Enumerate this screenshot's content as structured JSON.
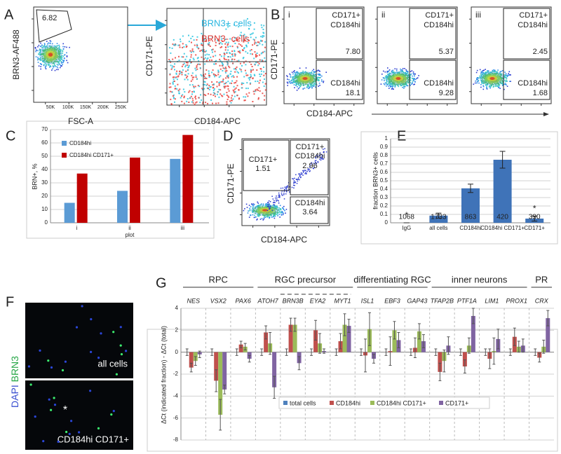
{
  "panel_labels": [
    "A",
    "B",
    "C",
    "D",
    "E",
    "F",
    "G"
  ],
  "panel_a": {
    "gate_value": "6.82",
    "left_y_label": "BRN3-AF488",
    "left_x_label": "FSC-A",
    "left_xticks": [
      "50K",
      "100K",
      "150K",
      "200K",
      "250K"
    ],
    "right_y_label": "CD171-PE",
    "right_x_label": "CD184-APC",
    "legend": [
      "BRN3+ cells",
      "BRN3- cells"
    ]
  },
  "panel_b": {
    "y_label": "CD171-PE",
    "x_label": "CD184-APC",
    "plots": [
      {
        "label": "i",
        "upper_gate": [
          "CD171+",
          "CD184hi"
        ],
        "upper_value": "7.80",
        "lower_gate": "CD184hi",
        "lower_value": "18.1"
      },
      {
        "label": "ii",
        "upper_gate": [
          "CD171+",
          "CD184hi"
        ],
        "upper_value": "5.37",
        "lower_gate": "CD184hi",
        "lower_value": "9.28"
      },
      {
        "label": "iii",
        "upper_gate": [
          "CD171+",
          "CD184hi"
        ],
        "upper_value": "2.45",
        "lower_gate": "CD184hi",
        "lower_value": "1.68"
      }
    ]
  },
  "panel_d": {
    "y_label": "CD171-PE",
    "x_label": "CD184-APC",
    "left_gate": "CD171+",
    "left_value": "1.51",
    "upper_gate": [
      "CD171+",
      "CD184hi"
    ],
    "upper_value": "2.96",
    "lower_gate": "CD184hi",
    "lower_value": "3.64"
  },
  "panel_f": {
    "stain_labels": [
      "DAPI",
      "BRN3"
    ],
    "top_label": "all cells",
    "bottom_label": "CD184hi CD171+",
    "marker": "*"
  },
  "chart_data": [
    {
      "type": "bar",
      "y_label": "BRN+, %",
      "x_label": "plot",
      "categories": [
        "i",
        "ii",
        "iii"
      ],
      "series": [
        {
          "name": "CD184hi",
          "color": "#5b9bd5",
          "values": [
            15,
            24,
            48
          ]
        },
        {
          "name": "CD184hi CD171+",
          "color": "#c00000",
          "values": [
            37,
            49,
            66
          ]
        }
      ],
      "ylim": [
        0,
        70
      ],
      "yticks": [
        0,
        10,
        20,
        30,
        40,
        50,
        60,
        70
      ],
      "grid": true,
      "legend": "upper left"
    },
    {
      "type": "bar",
      "y_label": "fraction BRN3+ cells",
      "categories": [
        "IgG",
        "all cells",
        "CD184hi",
        "CD184hi CD171+",
        "CD171+"
      ],
      "values": [
        0,
        0.085,
        0.41,
        0.75,
        0.05
      ],
      "errors": [
        0,
        0.03,
        0.05,
        0.1,
        0.03
      ],
      "count_labels": [
        1068,
        1733,
        863,
        420,
        390
      ],
      "significance": [
        "*",
        null,
        null,
        null,
        "*"
      ],
      "color": "#3f73b8",
      "ylim": [
        0,
        1
      ],
      "yticks": [
        0,
        0.1,
        0.2,
        0.3,
        0.4,
        0.5,
        0.6,
        0.7,
        0.8,
        0.9,
        1
      ],
      "grid": true
    },
    {
      "type": "bar",
      "y_label": "ΔCt (indicated fraction) - ΔCt (total)",
      "group_labels": [
        "RPC",
        "RGC precursor",
        "differentiating RGC",
        "inner neurons",
        "PR"
      ],
      "categories": [
        "NES",
        "VSX2",
        "PAX6",
        "ATOH7",
        "BRN3B",
        "EYA2",
        "MYT1",
        "ISL1",
        "EBF3",
        "GAP43",
        "TFAP2B",
        "PTF1A",
        "LIM1",
        "PROX1",
        "CRX"
      ],
      "series": [
        {
          "name": "total cells",
          "color": "#4f81bd",
          "values": [
            0,
            0,
            0,
            0,
            0,
            0,
            0,
            0,
            0,
            0,
            0,
            0,
            0,
            0,
            0
          ],
          "errors": [
            0.3,
            0.3,
            0.3,
            0.3,
            0.3,
            0.3,
            0.3,
            0.3,
            0.3,
            0.3,
            0.3,
            0.3,
            0.3,
            0.3,
            0.3
          ]
        },
        {
          "name": "CD184hi",
          "color": "#c0504d",
          "values": [
            -1.4,
            -2.6,
            0.7,
            1.8,
            2.5,
            2.0,
            1.0,
            -0.3,
            0.1,
            0.4,
            -1.8,
            -1.3,
            -0.6,
            1.4,
            -0.5
          ],
          "errors": [
            0.4,
            1.0,
            0.3,
            0.6,
            0.6,
            0.9,
            0.7,
            1.5,
            1.3,
            0.9,
            0.8,
            0.6,
            0.9,
            0.8,
            0.4
          ]
        },
        {
          "name": "CD184hi CD171+",
          "color": "#9bbb59",
          "values": [
            -0.8,
            -5.7,
            0.5,
            0.8,
            2.5,
            0.8,
            2.5,
            2.1,
            2.0,
            1.9,
            -0.8,
            0.6,
            0.1,
            0.5,
            0.5
          ],
          "errors": [
            0.4,
            1.4,
            0.3,
            1.0,
            0.6,
            0.9,
            1.0,
            1.5,
            0.8,
            0.7,
            1.0,
            0.7,
            1.2,
            0.5,
            0.6
          ]
        },
        {
          "name": "CD171+",
          "color": "#8064a2",
          "values": [
            -0.2,
            -3.4,
            -0.6,
            -3.2,
            -1.0,
            0.1,
            2.4,
            -0.6,
            1.1,
            1.0,
            0.6,
            3.3,
            1.2,
            0.6,
            3.1
          ],
          "errors": [
            0.3,
            0.4,
            0.3,
            1.0,
            0.6,
            0.2,
            0.6,
            0.4,
            0.7,
            0.6,
            0.8,
            0.7,
            0.9,
            0.6,
            0.7
          ]
        }
      ],
      "ylim": [
        -8,
        4
      ],
      "yticks": [
        -8,
        -6,
        -4,
        -2,
        0,
        2,
        4
      ],
      "grid": true,
      "legend": "lower center"
    }
  ]
}
